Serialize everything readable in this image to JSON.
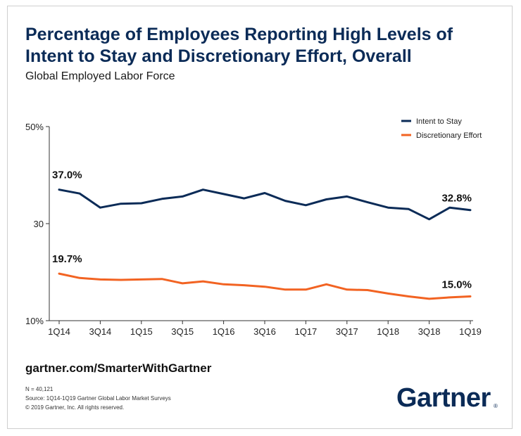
{
  "header": {
    "title": "Percentage of Employees Reporting High Levels of Intent to Stay and Discretionary Effort, Overall",
    "subtitle": "Global Employed Labor Force"
  },
  "footer": {
    "url": "gartner.com/SmarterWithGartner",
    "sample_note": "N = 40,121",
    "source": "Source: 1Q14-1Q19 Gartner Global Labor Market Surveys",
    "copyright": "© 2019 Gartner, Inc. All rights reserved.",
    "logo_text": "Gartner",
    "logo_mark": "®"
  },
  "colors": {
    "title": "#0b2b57",
    "intent_series": "#0b2b57",
    "effort_series": "#f26322",
    "axis": "#333333"
  },
  "chart_data": {
    "type": "line",
    "x": [
      "1Q14",
      "2Q14",
      "3Q14",
      "4Q14",
      "1Q15",
      "2Q15",
      "3Q15",
      "4Q15",
      "1Q16",
      "2Q16",
      "3Q16",
      "4Q16",
      "1Q17",
      "2Q17",
      "3Q17",
      "4Q17",
      "1Q18",
      "2Q18",
      "3Q18",
      "4Q18",
      "1Q19"
    ],
    "xticks": [
      "1Q14",
      "3Q14",
      "1Q15",
      "3Q15",
      "1Q16",
      "3Q16",
      "1Q17",
      "3Q17",
      "1Q18",
      "3Q18",
      "1Q19"
    ],
    "yticks": [
      10,
      30,
      50
    ],
    "ytick_labels": [
      "10%",
      "30",
      "50%"
    ],
    "ylim": [
      10,
      50
    ],
    "series": [
      {
        "name": "Intent to Stay",
        "color": "#0b2b57",
        "values": [
          37.0,
          36.2,
          33.3,
          34.1,
          34.2,
          35.1,
          35.6,
          37.0,
          36.1,
          35.2,
          36.3,
          34.7,
          33.8,
          35.0,
          35.6,
          34.4,
          33.3,
          33.0,
          30.9,
          33.3,
          32.8
        ],
        "start_label": "37.0%",
        "end_label": "32.8%"
      },
      {
        "name": "Discretionary Effort",
        "color": "#f26322",
        "values": [
          19.7,
          18.8,
          18.5,
          18.4,
          18.5,
          18.6,
          17.7,
          18.1,
          17.5,
          17.3,
          17.0,
          16.4,
          16.4,
          17.5,
          16.4,
          16.3,
          15.6,
          15.0,
          14.5,
          14.8,
          15.0
        ],
        "start_label": "19.7%",
        "end_label": "15.0%"
      }
    ],
    "legend_placement": "top-right",
    "grid": false
  }
}
